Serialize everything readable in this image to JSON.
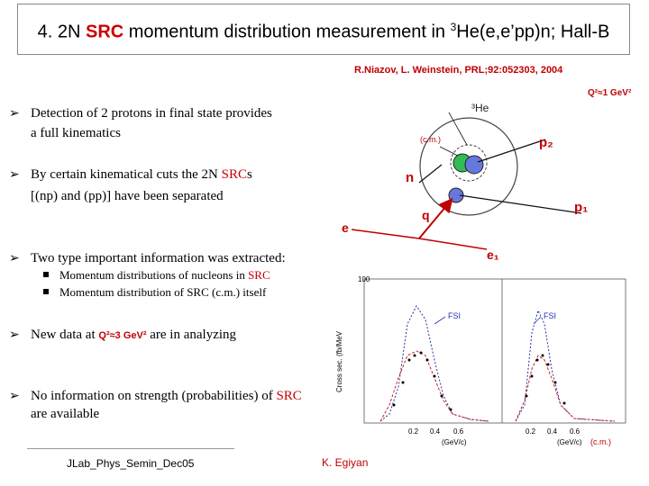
{
  "title": {
    "prefix": "4. 2N ",
    "highlight": "SRC",
    "middle": " momentum distribution measurement in ",
    "sup": "3",
    "suffix": "He(e,e’pp)n; Hall-B"
  },
  "reference": "R.Niazov, L. Weinstein, PRL;92:052303, 2004",
  "q2_label": "Q²≈1 GeV²",
  "bullets": [
    {
      "line1": "Detection of 2 protons in final state provides",
      "line2": "a full kinematics"
    },
    {
      "line1a": "By certain kinematical cuts the 2N ",
      "line1b": "SRC",
      "line1c": "s",
      "line2": "[(np) and (pp)] have been separated"
    },
    {
      "line1": "Two type important information was extracted:"
    },
    {
      "pre": "New data at ",
      "q2": "Q²≈3 GeV²",
      "post": " are in analyzing"
    },
    {
      "line1a": "No information on strength (probabilities) of ",
      "line1b": "SRC",
      "line2": "are available"
    }
  ],
  "subbullets": [
    {
      "pre": "Momentum distributions of nucleons in ",
      "red": "SRC"
    },
    {
      "pre": "Momentum distribution of SRC (c.m.) itself"
    }
  ],
  "diagram": {
    "he3": "³He",
    "cm": "(c.m.)",
    "p2": "p₂",
    "n": "n",
    "p1": "p₁",
    "q": "q",
    "e": "e",
    "e1": "e₁"
  },
  "plot": {
    "ylabel": "Cross sec. (fb/MeV",
    "fsi": "FSI",
    "xlabel": "(GeV/c)",
    "xticks": [
      "0.2",
      "0.4",
      "0.6"
    ],
    "ytick_top": "100",
    "cm": "(c.m.)"
  },
  "footer": {
    "left": "JLab_Phys_Semin_Dec05",
    "mid": "K. Egiyan"
  }
}
